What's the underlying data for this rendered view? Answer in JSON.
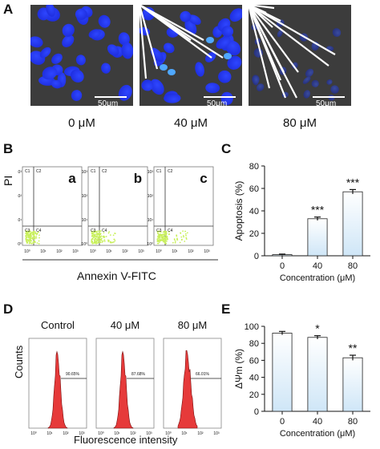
{
  "panels": {
    "A": {
      "letter": "A",
      "images": [
        {
          "label": "0 μM",
          "scale": "50μm"
        },
        {
          "label": "40 μM",
          "scale": "50μm"
        },
        {
          "label": "80 μM",
          "scale": "50μm"
        }
      ]
    },
    "B": {
      "letter": "B",
      "y_axis_label": "PI",
      "x_axis_label": "Annexin V-FITC",
      "subplots": [
        "a",
        "b",
        "c"
      ],
      "tick_labels": [
        "10⁰",
        "10¹",
        "10²",
        "10³"
      ],
      "quadrant_labels": [
        "C1",
        "C2",
        "C3",
        "C4"
      ]
    },
    "C": {
      "letter": "C",
      "ylabel": "Apoptosis (%)",
      "xlabel": "Concentration (μM)"
    },
    "D": {
      "letter": "D",
      "ylabel": "Counts",
      "xlabel": "Fluorescence intensity",
      "subplots": [
        {
          "title": "Control",
          "value": "90.65%"
        },
        {
          "title": "40 μM",
          "value": "87.68%"
        },
        {
          "title": "80 μM",
          "value": "66.01%"
        }
      ]
    },
    "E": {
      "letter": "E",
      "ylabel": "ΔΨm (%)",
      "xlabel": "Concentration (μM)"
    }
  },
  "chart_data": [
    {
      "panel": "C",
      "type": "bar",
      "categories": [
        "0",
        "40",
        "80"
      ],
      "values": [
        1,
        33,
        57
      ],
      "errors": [
        0.5,
        1.5,
        2
      ],
      "significance": [
        "",
        "***",
        "***"
      ],
      "ylabel": "Apoptosis (%)",
      "xlabel": "Concentration (μM)",
      "ylim": [
        0,
        80
      ],
      "yticks": [
        0,
        20,
        40,
        60,
        80
      ]
    },
    {
      "panel": "E",
      "type": "bar",
      "categories": [
        "0",
        "40",
        "80"
      ],
      "values": [
        92,
        87,
        63
      ],
      "errors": [
        2,
        2,
        3
      ],
      "significance": [
        "",
        "*",
        "**"
      ],
      "ylabel": "ΔΨm (%)",
      "xlabel": "Concentration (μM)",
      "ylim": [
        0,
        100
      ],
      "yticks": [
        0,
        20,
        40,
        60,
        80,
        100
      ]
    }
  ],
  "colors": {
    "nuclei": "#1f2fe0",
    "bright_nuclei": "#4fa8ff",
    "micro_bg": "#3c3c3c",
    "flow_dots": "#c8f05a",
    "histogram": "#e63a3a",
    "bar_top": "#ffffff",
    "bar_bottom": "#cfe6f7"
  }
}
